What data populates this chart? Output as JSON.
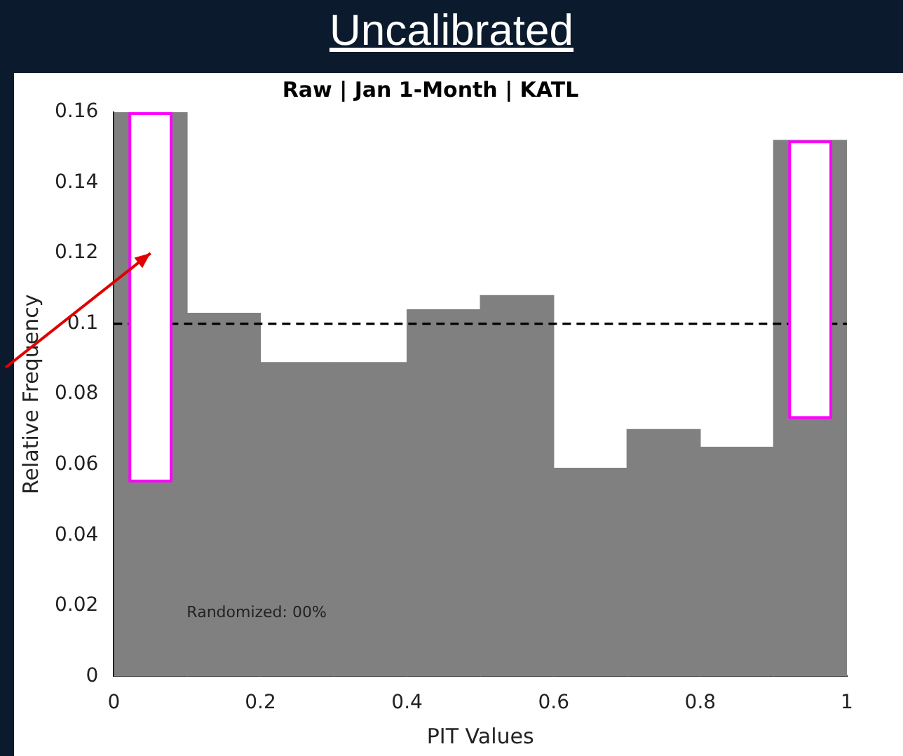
{
  "chart_data": {
    "type": "histogram",
    "title": "Raw | Jan 1-Month | KATL",
    "subtitle": "Uncalibrated",
    "xlabel": "PIT Values",
    "ylabel": "Relative Frequency",
    "bins": [
      0,
      0.1,
      0.2,
      0.3,
      0.4,
      0.5,
      0.6,
      0.7,
      0.8,
      0.9,
      1
    ],
    "values": [
      0.16,
      0.103,
      0.089,
      0.089,
      0.104,
      0.108,
      0.059,
      0.07,
      0.065,
      0.152
    ],
    "color": "#808080",
    "xlim": [
      0,
      1
    ],
    "ylim": [
      0,
      0.16
    ],
    "xticks": [
      0,
      0.2,
      0.4,
      0.6,
      0.8,
      1
    ],
    "yticks": [
      0,
      0.02,
      0.04,
      0.06,
      0.08,
      0.1,
      0.12,
      0.14,
      0.16
    ],
    "ref_lines": [
      {
        "axis": "y",
        "value": 0.1,
        "color": "#000000",
        "line_style": "dashed"
      }
    ],
    "annotations": [
      "Randomized: 00%"
    ],
    "grid": false,
    "legend": false
  }
}
